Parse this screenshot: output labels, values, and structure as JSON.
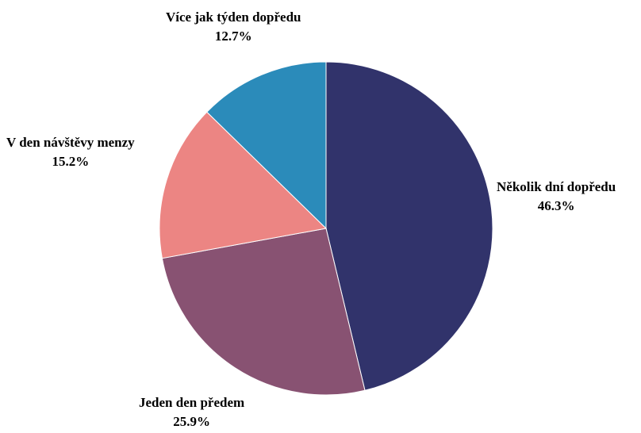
{
  "chart_data": {
    "type": "pie",
    "title": "",
    "start_angle_deg": 0,
    "direction": "clockwise",
    "slices": [
      {
        "label": "Několik dní dopředu",
        "value": 46.3,
        "value_label": "46.3%",
        "color": "#31336b"
      },
      {
        "label": "Jeden den předem",
        "value": 25.9,
        "value_label": "25.9%",
        "color": "#885272"
      },
      {
        "label": "V den návštěvy menzy",
        "value": 15.2,
        "value_label": "15.2%",
        "color": "#ec8583"
      },
      {
        "label": "Více jak týden dopředu",
        "value": 12.7,
        "value_label": "12.7%",
        "color": "#2b8bba"
      }
    ]
  }
}
